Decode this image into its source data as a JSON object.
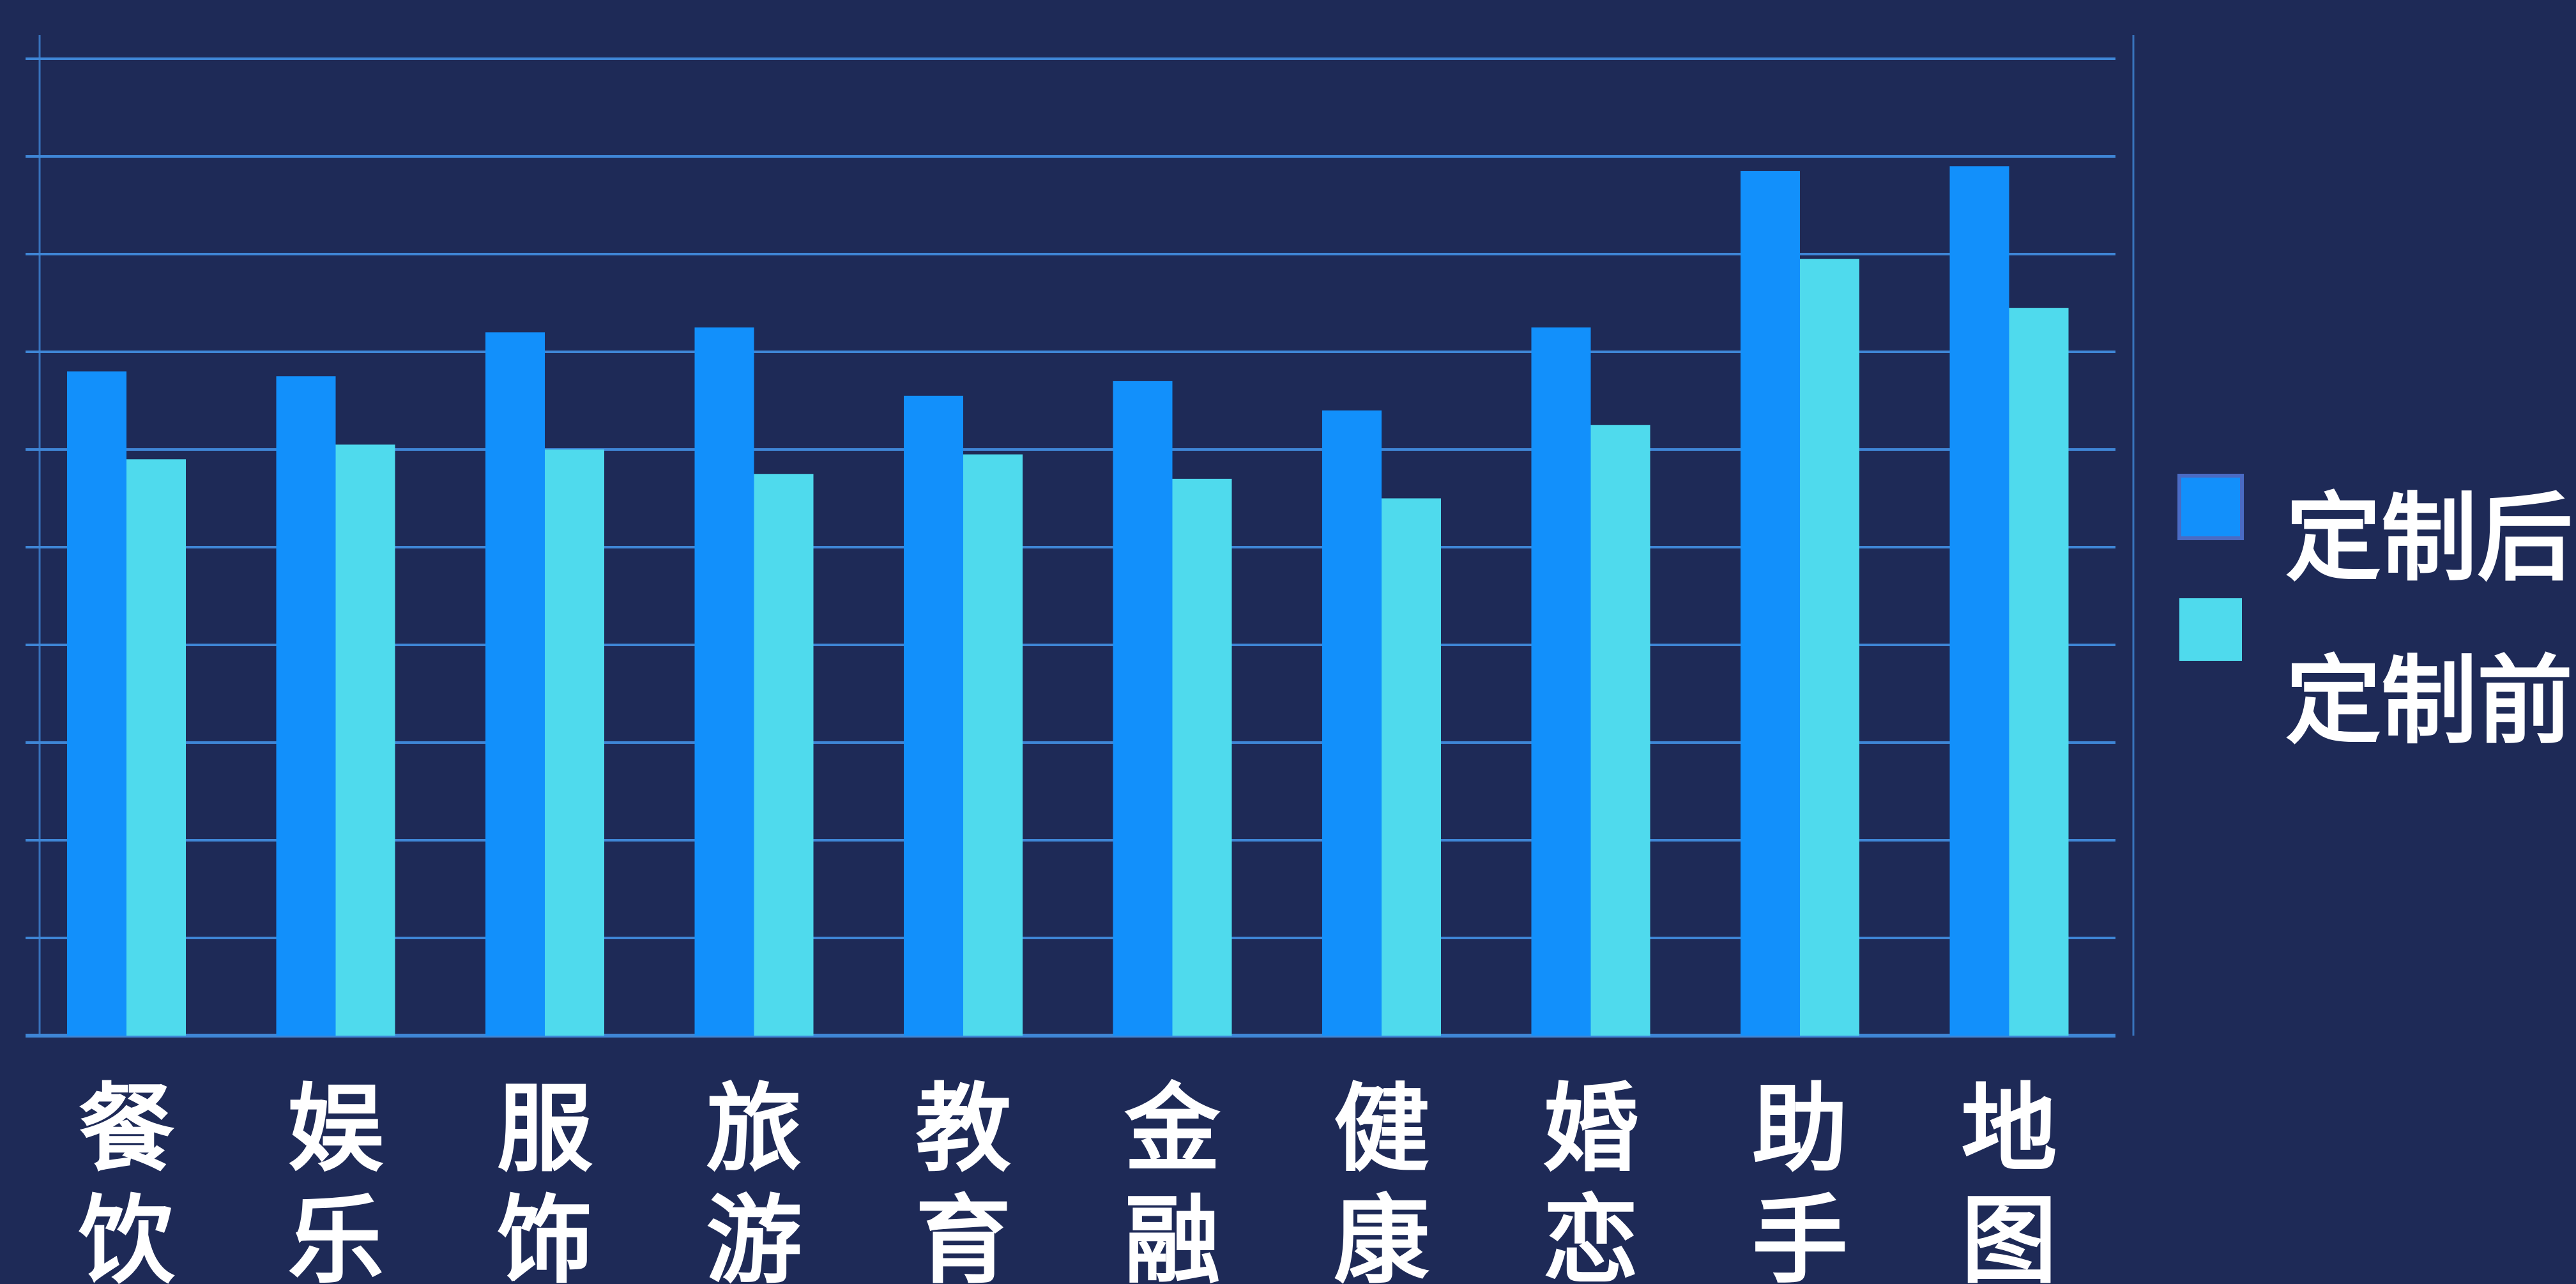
{
  "chart_data": {
    "type": "bar",
    "categories": [
      "餐饮",
      "娱乐",
      "服饰",
      "旅游",
      "教育",
      "金融",
      "健康",
      "婚恋",
      "助手",
      "地图"
    ],
    "series": [
      {
        "name": "定制后",
        "color": "#1290fb",
        "values": [
          68,
          67.5,
          72,
          72.5,
          65.5,
          67,
          64,
          72.5,
          88.5,
          89
        ]
      },
      {
        "name": "定制前",
        "color": "#4fdaed",
        "values": [
          59,
          60.5,
          60,
          57.5,
          59.5,
          57,
          55,
          62.5,
          79.5,
          74.5
        ]
      }
    ],
    "ylim": [
      0,
      100
    ],
    "y_gridlines": 10,
    "grid": true,
    "legend_position": "right",
    "colors": {
      "background": "#1e2a57",
      "grid": "#3f86d6",
      "text": "#ffffff"
    }
  }
}
